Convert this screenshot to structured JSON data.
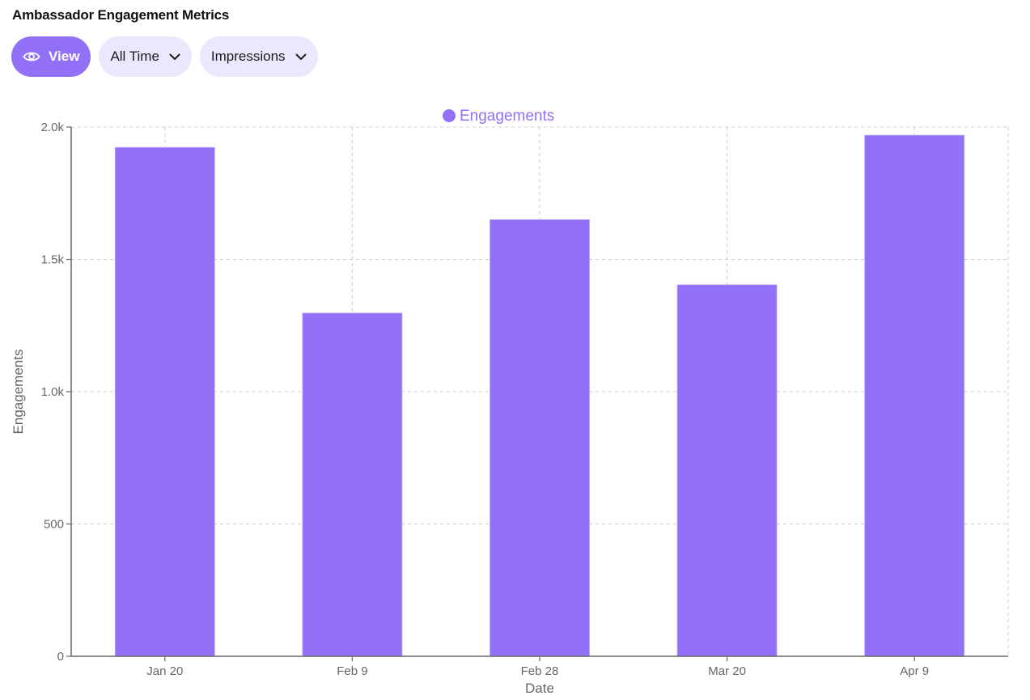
{
  "header": {
    "title": "Ambassador Engagement Metrics"
  },
  "toolbar": {
    "view_label": "View",
    "view_icon": "eye-icon",
    "range_label": "All Time",
    "metric_label": "Impressions",
    "dropdown_icon": "chevron-down-icon"
  },
  "colors": {
    "accent": "#9270f7",
    "pill_bg": "#ede7fd",
    "axis": "#666666",
    "grid": "#cccccc"
  },
  "chart_data": {
    "type": "bar",
    "title": "",
    "legend": [
      "Engagements"
    ],
    "legend_position": "top",
    "xlabel": "Date",
    "ylabel": "Engagements",
    "categories": [
      "Jan 20",
      "Feb 9",
      "Feb 28",
      "Mar 20",
      "Apr 9"
    ],
    "series": [
      {
        "name": "Engagements",
        "values": [
          1923,
          1297,
          1650,
          1404,
          1969
        ],
        "color": "#9270f7"
      }
    ],
    "ylim": [
      0,
      2000
    ],
    "yticks": [
      0,
      500,
      1000,
      1500,
      2000
    ],
    "ytick_labels": [
      "0",
      "500",
      "1.0k",
      "1.5k",
      "2.0k"
    ],
    "grid": true
  }
}
